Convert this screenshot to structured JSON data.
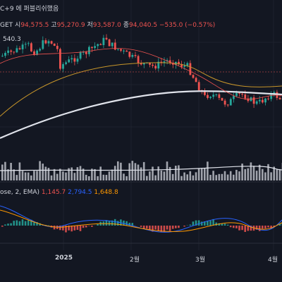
{
  "header": {
    "title_fragment": "C+9 에 퍼블리쉬했음",
    "symbol_fragment": "GET",
    "open_label": "시",
    "open_value": "94,575.5",
    "high_label": "고",
    "high_value": "95,270.9",
    "low_label": "저",
    "low_value": "93,587.0",
    "close_label": "종",
    "close_value": "94,040.5",
    "change_value": "−535.0 (−0.57%)"
  },
  "price_tag": "540.3",
  "indicator": {
    "label": "ose, 2, EMA)",
    "v1": "1,145.7",
    "v2": "2,794.5",
    "v3": "1,648.8"
  },
  "x_axis": [
    "2025",
    "2월",
    "3월",
    "4월"
  ],
  "colors": {
    "bg": "#131722",
    "up": "#26a69a",
    "down": "#ef5350",
    "ma_white": "#e0e3eb",
    "ma_orange": "#c8962a",
    "macd_blue": "#2962ff",
    "signal_orange": "#ff9800"
  }
}
